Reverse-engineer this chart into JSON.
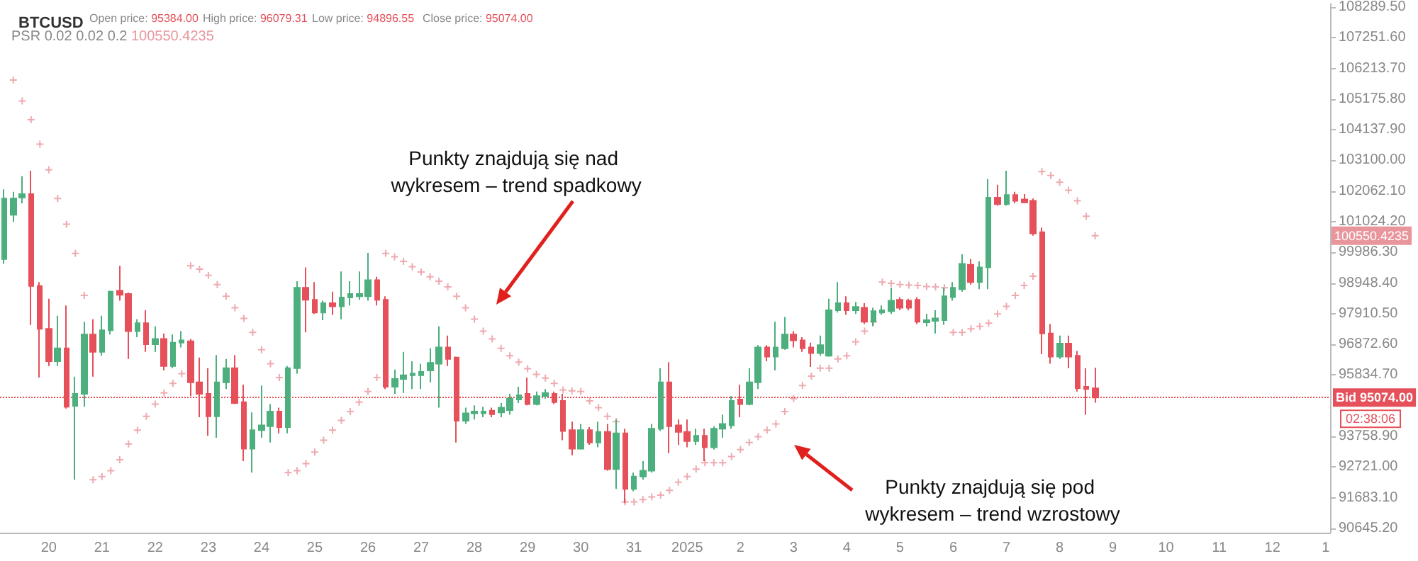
{
  "chart_data": {
    "type": "candlestick",
    "title": "BTCUSD",
    "annotations": [
      "Open price: 95384.00",
      "High price: 96079.31",
      "Low price: 94896.55",
      "Close price: 95074.00",
      "100550.4235",
      "100550.4235",
      "02:38:06",
      "Punkty znajdują się nad wykresem – trend spadkowy",
      "Punkty znajdują się pod wykresem – trend wzrostowy"
    ],
    "categories": [
      null,
      null,
      null,
      null,
      null,
      "20",
      null,
      null,
      null,
      null,
      null,
      "21",
      null,
      null,
      null,
      null,
      null,
      "22",
      null,
      null,
      null,
      null,
      null,
      "23",
      null,
      null,
      null,
      null,
      null,
      "24",
      null,
      null,
      null,
      null,
      null,
      "25",
      null,
      null,
      null,
      null,
      null,
      "26",
      null,
      null,
      null,
      null,
      null,
      "27",
      null,
      null,
      null,
      null,
      null,
      "28",
      null,
      null,
      null,
      null,
      null,
      "29",
      null,
      null,
      null,
      null,
      null,
      "30",
      null,
      null,
      null,
      null,
      null,
      "31",
      null,
      null,
      null,
      null,
      null,
      "2025",
      null,
      null,
      null,
      null,
      null,
      "2",
      null,
      null,
      null,
      null,
      null,
      "3",
      null,
      null,
      null,
      null,
      null,
      "4",
      null,
      null,
      null,
      null,
      null,
      "5",
      null,
      null,
      null,
      null,
      null,
      "6",
      null,
      null,
      null,
      null,
      null,
      "7",
      null,
      null,
      null,
      null,
      null,
      "8",
      null,
      null,
      null,
      null,
      null,
      "9",
      null,
      null,
      null,
      null,
      null,
      "10",
      null,
      null,
      null,
      null,
      null,
      "11",
      null,
      null,
      null,
      null,
      null,
      "12",
      null,
      null,
      null,
      null,
      null,
      "1"
    ],
    "ylim": [
      90500,
      108400
    ],
    "yticks": [
      {
        "value": 90645.2,
        "label": "90645.20"
      },
      {
        "value": 91683.1,
        "label": "91683.10"
      },
      {
        "value": 92721,
        "label": "92721.00"
      },
      {
        "value": 93758.9,
        "label": "93758.90"
      },
      {
        "value": 95834.7,
        "label": "95834.70"
      },
      {
        "value": 96872.6,
        "label": "96872.60"
      },
      {
        "value": 97910.5,
        "label": "97910.50"
      },
      {
        "value": 98948.4,
        "label": "98948.40"
      },
      {
        "value": 99986.3,
        "label": "99986.30"
      },
      {
        "value": 101024.2,
        "label": "101024.20"
      },
      {
        "value": 102062.1,
        "label": "102062.10"
      },
      {
        "value": 103100,
        "label": "103100.00"
      },
      {
        "value": 104137.9,
        "label": "104137.90"
      },
      {
        "value": 105175.8,
        "label": "105175.80"
      },
      {
        "value": 106213.7,
        "label": "106213.70"
      },
      {
        "value": 107251.6,
        "label": "107251.60"
      },
      {
        "value": 108289.5,
        "label": "108289.50"
      }
    ],
    "marker": "cross",
    "ref_lines": [
      {
        "axis": "y",
        "value": 95074,
        "label": "Bid 95074.00",
        "color": "#e5505a",
        "line_style": "dotted"
      }
    ],
    "series": [
      {
        "type": "candlestick",
        "colors": [
          "#4caf7d",
          "#4caf7d",
          "#4caf7d",
          "#e5505a",
          "#e5505a",
          "#e5505a",
          "#4caf7d",
          "#e5505a",
          "#4caf7d",
          "#4caf7d",
          "#e5505a",
          "#4caf7d",
          "#4caf7d",
          "#e5505a",
          "#e5505a",
          "#4caf7d",
          "#e5505a",
          "#4caf7d",
          "#e5505a",
          "#4caf7d",
          "#4caf7d",
          "#e5505a",
          "#e5505a",
          "#e5505a",
          "#4caf7d",
          "#4caf7d",
          "#e5505a",
          "#e5505a",
          "#4caf7d",
          "#4caf7d",
          "#4caf7d",
          "#e5505a",
          "#4caf7d",
          "#4caf7d",
          "#e5505a",
          "#e5505a",
          "#4caf7d",
          "#e5505a",
          "#4caf7d",
          "#4caf7d",
          "#4caf7d",
          "#4caf7d",
          "#e5505a",
          "#e5505a",
          "#4caf7d",
          "#4caf7d",
          "#4caf7d",
          "#4caf7d",
          "#4caf7d",
          "#4caf7d",
          "#e5505a",
          "#e5505a",
          "#4caf7d",
          "#4caf7d",
          "#4caf7d",
          "#e5505a",
          "#4caf7d",
          "#4caf7d",
          "#4caf7d",
          "#e5505a",
          "#4caf7d",
          "#4caf7d",
          "#e5505a",
          "#e5505a",
          "#e5505a",
          "#4caf7d",
          "#e5505a",
          "#4caf7d",
          "#e5505a",
          "#4caf7d",
          "#e5505a",
          "#4caf7d",
          "#4caf7d",
          "#4caf7d",
          "#4caf7d",
          "#e5505a",
          "#e5505a",
          "#e5505a",
          "#4caf7d",
          "#e5505a",
          "#4caf7d",
          "#4caf7d",
          "#4caf7d",
          "#e5505a",
          "#4caf7d",
          "#4caf7d",
          "#e5505a",
          "#4caf7d",
          "#4caf7d",
          "#e5505a",
          "#e5505a",
          "#e5505a",
          "#4caf7d",
          "#4caf7d",
          "#4caf7d",
          "#e5505a",
          "#4caf7d",
          "#e5505a",
          "#4caf7d",
          "#4caf7d",
          "#4caf7d",
          "#e5505a",
          "#e5505a",
          "#e5505a",
          "#4caf7d",
          "#4caf7d",
          "#4caf7d",
          "#4caf7d",
          "#4caf7d",
          "#e5505a",
          "#4caf7d",
          "#4caf7d",
          "#e5505a",
          "#4caf7d",
          "#e5505a",
          "#e5505a",
          "#e5505a",
          "#e5505a",
          "#e5505a",
          "#4caf7d",
          "#e5505a",
          "#e5505a",
          "#e5505a",
          "#e5505a",
          null,
          null,
          null,
          null,
          null,
          null,
          null,
          null,
          null,
          null,
          null,
          null,
          null,
          null,
          null,
          null,
          null,
          null,
          null,
          null,
          null,
          null,
          null,
          null,
          null,
          null
        ],
        "ohlc": [
          [
            99760,
            102120,
            99600,
            101810
          ],
          [
            101260,
            102040,
            101020,
            101810
          ],
          [
            101840,
            102560,
            101650,
            101960
          ],
          [
            101960,
            102750,
            97530,
            98850
          ],
          [
            98850,
            98980,
            95750,
            97400
          ],
          [
            97400,
            98420,
            96140,
            96300
          ],
          [
            96300,
            97840,
            96140,
            96740
          ],
          [
            96740,
            98190,
            94700,
            94760
          ],
          [
            94790,
            95780,
            92290,
            95200
          ],
          [
            95200,
            97640,
            94760,
            97210
          ],
          [
            97210,
            97720,
            95780,
            96620
          ],
          [
            96620,
            97840,
            96490,
            97350
          ],
          [
            97350,
            98690,
            97210,
            98660
          ],
          [
            98690,
            99530,
            98350,
            98550
          ],
          [
            98580,
            98630,
            96380,
            97320
          ],
          [
            97320,
            97720,
            97120,
            97590
          ],
          [
            97590,
            98030,
            96620,
            96880
          ],
          [
            96880,
            97480,
            96620,
            97060
          ],
          [
            97060,
            97240,
            95990,
            96140
          ],
          [
            96140,
            97210,
            96070,
            96930
          ],
          [
            96930,
            97320,
            96770,
            97010
          ],
          [
            96980,
            97060,
            95120,
            95590
          ],
          [
            95590,
            96430,
            94410,
            95200
          ],
          [
            95200,
            96070,
            93780,
            94440
          ],
          [
            94440,
            96510,
            93710,
            95590
          ],
          [
            95590,
            96380,
            95360,
            96070
          ],
          [
            96070,
            96510,
            94850,
            94890
          ],
          [
            94920,
            95510,
            92920,
            93340
          ],
          [
            93340,
            94570,
            92530,
            93970
          ],
          [
            93970,
            95480,
            93710,
            94130
          ],
          [
            94100,
            94850,
            93550,
            94600
          ],
          [
            94600,
            94730,
            93860,
            94070
          ],
          [
            94070,
            96140,
            93860,
            96070
          ],
          [
            96070,
            99010,
            95880,
            98790
          ],
          [
            98790,
            99480,
            97280,
            98380
          ],
          [
            98380,
            98980,
            97900,
            97950
          ],
          [
            97950,
            98350,
            97690,
            98270
          ],
          [
            98270,
            98660,
            97870,
            98160
          ],
          [
            98160,
            99340,
            97720,
            98460
          ],
          [
            98460,
            99010,
            98190,
            98580
          ],
          [
            98500,
            99340,
            98380,
            98580
          ],
          [
            98500,
            99970,
            98350,
            99050
          ],
          [
            99050,
            99160,
            98190,
            98380
          ],
          [
            98380,
            98500,
            95360,
            95440
          ],
          [
            95440,
            96020,
            95200,
            95700
          ],
          [
            95700,
            96620,
            95230,
            95830
          ],
          [
            95830,
            96300,
            95360,
            95880
          ],
          [
            95830,
            96220,
            95360,
            95940
          ],
          [
            95990,
            96740,
            95590,
            96250
          ],
          [
            96220,
            97480,
            94730,
            96770
          ],
          [
            96770,
            97170,
            96140,
            96380
          ],
          [
            96430,
            96460,
            93550,
            94290
          ],
          [
            94290,
            94730,
            94180,
            94540
          ],
          [
            94540,
            94810,
            94330,
            94600
          ],
          [
            94540,
            94760,
            94410,
            94600
          ],
          [
            94630,
            94730,
            94410,
            94510
          ],
          [
            94570,
            94890,
            94410,
            94730
          ],
          [
            94650,
            95200,
            94490,
            95040
          ],
          [
            95010,
            95440,
            94890,
            95150
          ],
          [
            95200,
            95750,
            94810,
            94850
          ],
          [
            94850,
            95280,
            94810,
            95120
          ],
          [
            95120,
            95360,
            95040,
            95230
          ],
          [
            95200,
            95280,
            94850,
            94920
          ],
          [
            94960,
            95200,
            93630,
            93940
          ],
          [
            93970,
            94260,
            93120,
            93340
          ],
          [
            93340,
            94180,
            93310,
            93970
          ],
          [
            93970,
            94070,
            93470,
            93550
          ],
          [
            93550,
            94260,
            93390,
            93910
          ],
          [
            93910,
            94180,
            92600,
            92650
          ],
          [
            92650,
            94330,
            91980,
            93860
          ],
          [
            93860,
            94020,
            91500,
            91980
          ],
          [
            91980,
            92530,
            91900,
            92400
          ],
          [
            92400,
            92920,
            92290,
            92600
          ],
          [
            92600,
            94180,
            92530,
            94020
          ],
          [
            94020,
            96070,
            93940,
            95590
          ],
          [
            95590,
            96270,
            93190,
            94100
          ],
          [
            94130,
            94330,
            93470,
            93910
          ],
          [
            93910,
            94330,
            93390,
            93600
          ],
          [
            93600,
            94020,
            93470,
            93780
          ],
          [
            93780,
            94020,
            92920,
            93390
          ],
          [
            93390,
            94100,
            93310,
            94020
          ],
          [
            94020,
            94490,
            93710,
            94180
          ],
          [
            94130,
            95120,
            94020,
            94960
          ],
          [
            95010,
            95510,
            94410,
            94850
          ],
          [
            94850,
            96070,
            94810,
            95590
          ],
          [
            95590,
            96850,
            95360,
            96770
          ],
          [
            96770,
            96850,
            96300,
            96460
          ],
          [
            96460,
            97640,
            95990,
            96770
          ],
          [
            96740,
            97800,
            96690,
            97210
          ],
          [
            97210,
            97320,
            96770,
            97010
          ],
          [
            97010,
            97120,
            96620,
            96740
          ],
          [
            96770,
            96930,
            96110,
            96580
          ],
          [
            96580,
            97170,
            96490,
            96850
          ],
          [
            96490,
            98420,
            96460,
            98030
          ],
          [
            98030,
            98980,
            97950,
            98270
          ],
          [
            98270,
            98500,
            97870,
            98030
          ],
          [
            98030,
            98310,
            97900,
            98140
          ],
          [
            98110,
            98270,
            97560,
            97640
          ],
          [
            97640,
            98110,
            97480,
            98000
          ],
          [
            97950,
            98190,
            97870,
            98030
          ],
          [
            98000,
            98790,
            97900,
            98350
          ],
          [
            98380,
            98470,
            98030,
            98110
          ],
          [
            98350,
            98420,
            98030,
            98110
          ],
          [
            98380,
            98470,
            97560,
            97640
          ],
          [
            97620,
            97900,
            97480,
            97690
          ],
          [
            97670,
            98030,
            97240,
            97750
          ],
          [
            97690,
            98790,
            97530,
            98500
          ],
          [
            98470,
            98980,
            98350,
            98790
          ],
          [
            98740,
            99920,
            98660,
            99600
          ],
          [
            99570,
            99760,
            98900,
            98980
          ],
          [
            98980,
            99680,
            98740,
            99480
          ],
          [
            99480,
            102470,
            98740,
            101840
          ],
          [
            101840,
            102280,
            101570,
            101620
          ],
          [
            101620,
            102750,
            101570,
            101930
          ],
          [
            101930,
            102040,
            101650,
            101730
          ],
          [
            101780,
            101960,
            101650,
            101680
          ],
          [
            101730,
            101810,
            100550,
            100630
          ],
          [
            100670,
            100830,
            96540,
            97240
          ],
          [
            97240,
            97560,
            96220,
            96460
          ],
          [
            96460,
            97170,
            96380,
            96900
          ],
          [
            96900,
            97170,
            96070,
            96460
          ],
          [
            96490,
            96650,
            95280,
            95390
          ],
          [
            95440,
            96070,
            94490,
            95360
          ],
          [
            95384,
            96079.31,
            94896.55,
            95074
          ],
          null,
          null,
          null,
          null,
          null,
          null,
          null,
          null,
          null,
          null,
          null,
          null,
          null,
          null,
          null,
          null,
          null,
          null,
          null,
          null,
          null,
          null,
          null,
          null,
          null,
          null
        ]
      },
      {
        "type": "scatter",
        "name": "PSR 0.02 0.02 0.2",
        "color": "#e8959c",
        "values": [
          null,
          105820,
          105110,
          104480,
          103650,
          102780,
          101810,
          100940,
          99950,
          98530,
          92290,
          92400,
          92600,
          92970,
          93500,
          93970,
          94440,
          94850,
          95230,
          95550,
          95880,
          99530,
          99420,
          99210,
          98900,
          98500,
          98110,
          97750,
          97280,
          96690,
          96220,
          95750,
          92530,
          92600,
          92840,
          93230,
          93630,
          93970,
          94300,
          94600,
          94920,
          95280,
          95750,
          99950,
          99840,
          99680,
          99500,
          99320,
          99160,
          99010,
          98820,
          98500,
          98110,
          97730,
          97320,
          97060,
          96740,
          96490,
          96270,
          96050,
          95860,
          95730,
          95550,
          95330,
          95300,
          95280,
          94960,
          94730,
          94440,
          94260,
          91540,
          91540,
          91620,
          91710,
          91770,
          91930,
          92210,
          92400,
          92650,
          92870,
          92870,
          92870,
          93080,
          93310,
          93550,
          93750,
          93970,
          94180,
          94600,
          95040,
          95480,
          95800,
          96070,
          96070,
          96380,
          96490,
          96960,
          97320,
          97640,
          98980,
          98940,
          98900,
          98880,
          98870,
          98830,
          98820,
          98790,
          97280,
          97280,
          97400,
          97480,
          97590,
          97900,
          98160,
          98530,
          98870,
          99180,
          102720,
          102590,
          102360,
          102090,
          101730,
          101210,
          100550,
          null,
          null,
          null,
          null,
          null,
          null,
          null,
          null,
          null,
          null,
          null,
          null,
          null,
          null,
          null,
          null,
          null,
          null,
          null,
          null,
          null,
          null,
          null,
          null,
          null,
          null
        ]
      }
    ]
  }
}
